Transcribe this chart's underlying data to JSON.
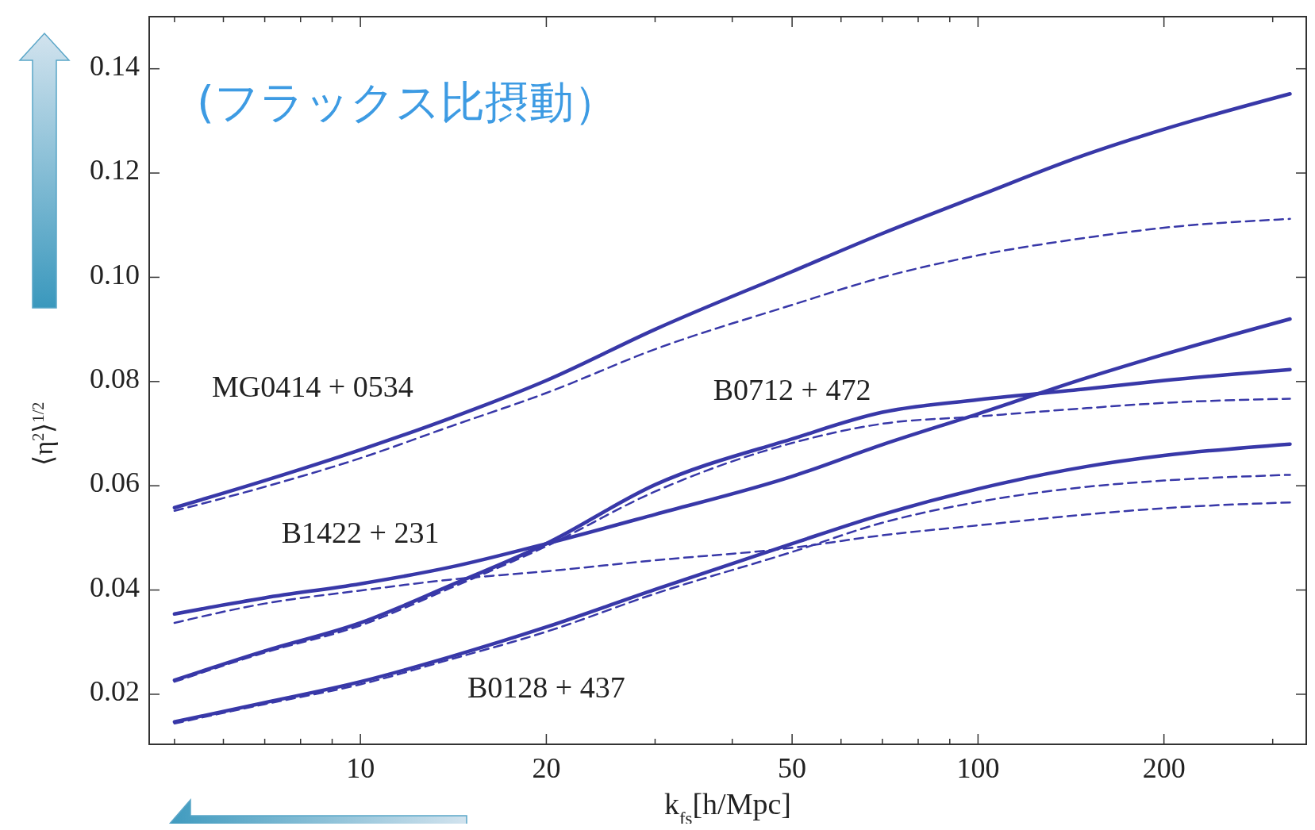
{
  "chart_data": {
    "type": "line",
    "xlabel": "k$_{fs}$[h/Mpc]",
    "ylabel": "⟨η$^{2}$⟩$^{1/2}$",
    "log": "x",
    "grid": false,
    "xlim": [
      4.55,
      340
    ],
    "ylim": [
      0.0104,
      0.15
    ],
    "xticks": [
      {
        "value": 5,
        "label": null
      },
      {
        "value": 6,
        "label": null
      },
      {
        "value": 7,
        "label": null
      },
      {
        "value": 8,
        "label": null
      },
      {
        "value": 9,
        "label": null
      },
      10,
      20,
      {
        "value": 30,
        "label": null
      },
      {
        "value": 40,
        "label": null
      },
      50,
      {
        "value": 60,
        "label": null
      },
      {
        "value": 70,
        "label": null
      },
      {
        "value": 80,
        "label": null
      },
      {
        "value": 90,
        "label": null
      },
      100,
      200,
      {
        "value": 300,
        "label": null
      }
    ],
    "yticks": [
      0.02,
      0.04,
      0.06,
      0.08,
      {
        "value": 0.1,
        "label": "0.10"
      },
      0.12,
      0.14
    ],
    "x": [
      5,
      7,
      10,
      14,
      20,
      30,
      50,
      70,
      100,
      150,
      200,
      320
    ],
    "annotations": [
      "(フラックス比摂動）"
    ],
    "series": [
      {
        "name": "MG0414 + 0534",
        "color": "#3838a8",
        "line_style": "solid",
        "values": [
          0.0558,
          0.061,
          0.0669,
          0.073,
          0.0802,
          0.09,
          0.1011,
          0.1084,
          0.1156,
          0.1236,
          0.1284,
          0.1352
        ]
      },
      {
        "color": "#3838a8",
        "line_style": "dashed",
        "values": [
          0.0552,
          0.0598,
          0.0653,
          0.0714,
          0.0778,
          0.0862,
          0.0947,
          0.1,
          0.1042,
          0.1076,
          0.1095,
          0.1112
        ]
      },
      {
        "name": "B0712 + 472",
        "color": "#3838a8",
        "line_style": "solid",
        "values": [
          0.0227,
          0.0283,
          0.0337,
          0.0409,
          0.0489,
          0.0602,
          0.069,
          0.0741,
          0.0765,
          0.0786,
          0.0802,
          0.0823
        ]
      },
      {
        "color": "#3838a8",
        "line_style": "dashed",
        "values": [
          0.0224,
          0.028,
          0.0332,
          0.0404,
          0.0484,
          0.0589,
          0.0682,
          0.0719,
          0.0733,
          0.0749,
          0.0759,
          0.0767
        ]
      },
      {
        "name": "B1422 + 231",
        "color": "#3838a8",
        "line_style": "solid",
        "values": [
          0.0354,
          0.0385,
          0.0412,
          0.0444,
          0.0489,
          0.0545,
          0.0618,
          0.0679,
          0.0738,
          0.0807,
          0.0852,
          0.092
        ]
      },
      {
        "color": "#3838a8",
        "line_style": "dashed",
        "values": [
          0.0337,
          0.0374,
          0.0399,
          0.042,
          0.0436,
          0.0457,
          0.0481,
          0.0505,
          0.0524,
          0.0545,
          0.0557,
          0.0568
        ]
      },
      {
        "name": "B0128 + 437",
        "color": "#3838a8",
        "line_style": "solid",
        "values": [
          0.0147,
          0.0184,
          0.0224,
          0.0272,
          0.0329,
          0.0401,
          0.0489,
          0.0545,
          0.0594,
          0.0637,
          0.0658,
          0.068
        ]
      },
      {
        "color": "#3838a8",
        "line_style": "dashed",
        "values": [
          0.0144,
          0.0181,
          0.0219,
          0.0267,
          0.032,
          0.0393,
          0.0473,
          0.0529,
          0.0569,
          0.0598,
          0.061,
          0.0621
        ]
      }
    ]
  }
}
